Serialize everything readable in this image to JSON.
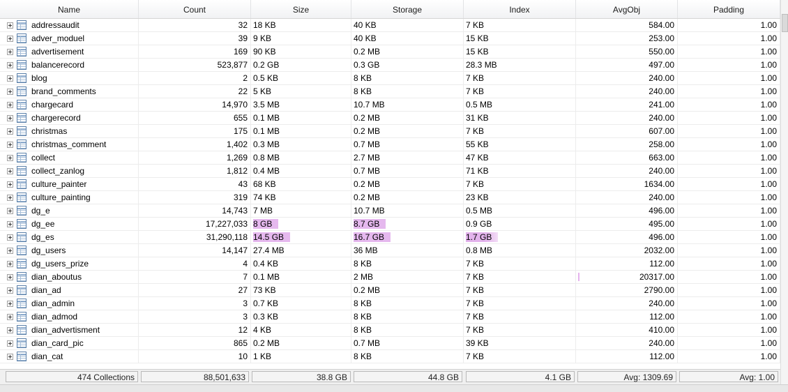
{
  "columns": [
    "Name",
    "Count",
    "Size",
    "Storage",
    "Index",
    "AvgObj",
    "Padding"
  ],
  "rows": [
    {
      "name": "addressaudit",
      "count": "32",
      "size": "18 KB",
      "storage": "40 KB",
      "index": "7 KB",
      "avgobj": "584.00",
      "padding": "1.00"
    },
    {
      "name": "adver_moduel",
      "count": "39",
      "size": "9 KB",
      "storage": "40 KB",
      "index": "15 KB",
      "avgobj": "253.00",
      "padding": "1.00"
    },
    {
      "name": "advertisement",
      "count": "169",
      "size": "90 KB",
      "storage": "0.2 MB",
      "index": "15 KB",
      "avgobj": "550.00",
      "padding": "1.00"
    },
    {
      "name": "balancerecord",
      "count": "523,877",
      "size": "0.2 GB",
      "storage": "0.3 GB",
      "index": "28.3 MB",
      "avgobj": "497.00",
      "padding": "1.00"
    },
    {
      "name": "blog",
      "count": "2",
      "size": "0.5 KB",
      "storage": "8 KB",
      "index": "7 KB",
      "avgobj": "240.00",
      "padding": "1.00"
    },
    {
      "name": "brand_comments",
      "count": "22",
      "size": "5 KB",
      "storage": "8 KB",
      "index": "7 KB",
      "avgobj": "240.00",
      "padding": "1.00"
    },
    {
      "name": "chargecard",
      "count": "14,970",
      "size": "3.5 MB",
      "storage": "10.7 MB",
      "index": "0.5 MB",
      "avgobj": "241.00",
      "padding": "1.00"
    },
    {
      "name": "chargerecord",
      "count": "655",
      "size": "0.1 MB",
      "storage": "0.2 MB",
      "index": "31 KB",
      "avgobj": "240.00",
      "padding": "1.00"
    },
    {
      "name": "christmas",
      "count": "175",
      "size": "0.1 MB",
      "storage": "0.2 MB",
      "index": "7 KB",
      "avgobj": "607.00",
      "padding": "1.00"
    },
    {
      "name": "christmas_comment",
      "count": "1,402",
      "size": "0.3 MB",
      "storage": "0.7 MB",
      "index": "55 KB",
      "avgobj": "258.00",
      "padding": "1.00"
    },
    {
      "name": "collect",
      "count": "1,269",
      "size": "0.8 MB",
      "storage": "2.7 MB",
      "index": "47 KB",
      "avgobj": "663.00",
      "padding": "1.00"
    },
    {
      "name": "collect_zanlog",
      "count": "1,812",
      "size": "0.4 MB",
      "storage": "0.7 MB",
      "index": "71 KB",
      "avgobj": "240.00",
      "padding": "1.00"
    },
    {
      "name": "culture_painter",
      "count": "43",
      "size": "68 KB",
      "storage": "0.2 MB",
      "index": "7 KB",
      "avgobj": "1634.00",
      "padding": "1.00"
    },
    {
      "name": "culture_painting",
      "count": "319",
      "size": "74 KB",
      "storage": "0.2 MB",
      "index": "23 KB",
      "avgobj": "240.00",
      "padding": "1.00"
    },
    {
      "name": "dg_e",
      "count": "14,743",
      "size": "7 MB",
      "storage": "10.7 MB",
      "index": "0.5 MB",
      "avgobj": "496.00",
      "padding": "1.00"
    },
    {
      "name": "dg_ee",
      "count": "17,227,033",
      "size": "8 GB",
      "storage": "8.7 GB",
      "index": "0.9 GB",
      "avgobj": "495.00",
      "padding": "1.00"
    },
    {
      "name": "dg_es",
      "count": "31,290,118",
      "size": "14.5 GB",
      "storage": "16.7 GB",
      "index": "1.7 GB",
      "avgobj": "496.00",
      "padding": "1.00"
    },
    {
      "name": "dg_users",
      "count": "14,147",
      "size": "27.4 MB",
      "storage": "36 MB",
      "index": "0.8 MB",
      "avgobj": "2032.00",
      "padding": "1.00"
    },
    {
      "name": "dg_users_prize",
      "count": "4",
      "size": "0.4 KB",
      "storage": "8 KB",
      "index": "7 KB",
      "avgobj": "112.00",
      "padding": "1.00"
    },
    {
      "name": "dian_aboutus",
      "count": "7",
      "size": "0.1 MB",
      "storage": "2 MB",
      "index": "7 KB",
      "avgobj": "20317.00",
      "padding": "1.00"
    },
    {
      "name": "dian_ad",
      "count": "27",
      "size": "73 KB",
      "storage": "0.2 MB",
      "index": "7 KB",
      "avgobj": "2790.00",
      "padding": "1.00"
    },
    {
      "name": "dian_admin",
      "count": "3",
      "size": "0.7 KB",
      "storage": "8 KB",
      "index": "7 KB",
      "avgobj": "240.00",
      "padding": "1.00"
    },
    {
      "name": "dian_admod",
      "count": "3",
      "size": "0.3 KB",
      "storage": "8 KB",
      "index": "7 KB",
      "avgobj": "112.00",
      "padding": "1.00"
    },
    {
      "name": "dian_advertisment",
      "count": "12",
      "size": "4 KB",
      "storage": "8 KB",
      "index": "7 KB",
      "avgobj": "410.00",
      "padding": "1.00"
    },
    {
      "name": "dian_card_pic",
      "count": "865",
      "size": "0.2 MB",
      "storage": "0.7 MB",
      "index": "39 KB",
      "avgobj": "240.00",
      "padding": "1.00"
    },
    {
      "name": "dian_cat",
      "count": "10",
      "size": "1 KB",
      "storage": "8 KB",
      "index": "7 KB",
      "avgobj": "112.00",
      "padding": "1.00"
    }
  ],
  "highlights": {
    "dg_ee": [
      "size",
      "storage"
    ],
    "dg_es": [
      "size",
      "storage",
      "index"
    ]
  },
  "footer": {
    "collections": "474 Collections",
    "count": "88,501,633",
    "size": "38.8 GB",
    "storage": "44.8 GB",
    "index": "4.1 GB",
    "avgobj": "Avg: 1309.69",
    "padding": "Avg: 1.00"
  },
  "colors": {
    "highlight": "#e5b8ee",
    "header_bg": "#f1f2f4",
    "grid_line": "#ececec"
  },
  "icons": {
    "expand": "expand-plus-icon",
    "collection": "table-icon"
  }
}
